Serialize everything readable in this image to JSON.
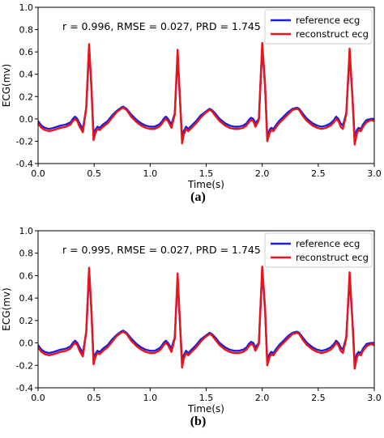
{
  "chart_data": [
    {
      "type": "line",
      "panel_label": "(a)",
      "annotation": "r = 0.996, RMSE = 0.027, PRD = 1.745",
      "xlabel": "Time(s)",
      "ylabel": "ECG(mv)",
      "xlim": [
        0.0,
        3.0
      ],
      "ylim": [
        -0.4,
        1.0
      ],
      "xticks": [
        "0.0",
        "0.5",
        "1.0",
        "1.5",
        "2.0",
        "2.5",
        "3.0"
      ],
      "yticks": [
        "-0.4",
        "-0.2",
        "0.0",
        "0.2",
        "0.4",
        "0.6",
        "0.8",
        "1.0"
      ],
      "grid": false,
      "legend_position": "top-right",
      "series": [
        {
          "name": "reference ecg",
          "color": "#1f1fd6",
          "x": [
            0.0,
            0.03,
            0.06,
            0.1,
            0.14,
            0.2,
            0.25,
            0.29,
            0.31,
            0.33,
            0.35,
            0.37,
            0.4,
            0.43,
            0.455,
            0.475,
            0.495,
            0.51,
            0.53,
            0.55,
            0.58,
            0.62,
            0.66,
            0.7,
            0.74,
            0.76,
            0.79,
            0.83,
            0.88,
            0.92,
            0.96,
            1.0,
            1.04,
            1.08,
            1.1,
            1.12,
            1.14,
            1.16,
            1.19,
            1.22,
            1.245,
            1.265,
            1.285,
            1.3,
            1.32,
            1.34,
            1.37,
            1.41,
            1.45,
            1.49,
            1.53,
            1.55,
            1.58,
            1.62,
            1.67,
            1.71,
            1.75,
            1.79,
            1.83,
            1.86,
            1.88,
            1.9,
            1.92,
            1.94,
            1.97,
            2.0,
            2.025,
            2.045,
            2.065,
            2.08,
            2.1,
            2.12,
            2.15,
            2.19,
            2.23,
            2.27,
            2.31,
            2.33,
            2.36,
            2.4,
            2.45,
            2.49,
            2.53,
            2.57,
            2.61,
            2.64,
            2.66,
            2.68,
            2.7,
            2.72,
            2.75,
            2.78,
            2.805,
            2.825,
            2.845,
            2.86,
            2.88,
            2.9,
            2.93,
            2.97,
            3.0
          ],
          "y": [
            -0.02,
            -0.06,
            -0.08,
            -0.09,
            -0.08,
            -0.06,
            -0.05,
            -0.03,
            0.0,
            0.02,
            0.0,
            -0.04,
            -0.09,
            0.1,
            0.63,
            0.3,
            -0.15,
            -0.1,
            -0.07,
            -0.08,
            -0.05,
            -0.02,
            0.03,
            0.07,
            0.1,
            0.11,
            0.09,
            0.04,
            -0.01,
            -0.04,
            -0.06,
            -0.07,
            -0.07,
            -0.05,
            -0.03,
            0.0,
            0.02,
            0.0,
            -0.05,
            0.05,
            0.57,
            0.2,
            -0.17,
            -0.11,
            -0.07,
            -0.09,
            -0.06,
            -0.02,
            0.03,
            0.06,
            0.09,
            0.08,
            0.05,
            0.0,
            -0.04,
            -0.06,
            -0.07,
            -0.07,
            -0.06,
            -0.04,
            -0.01,
            0.01,
            0.0,
            -0.04,
            0.0,
            0.64,
            0.3,
            -0.16,
            -0.1,
            -0.08,
            -0.09,
            -0.06,
            -0.02,
            0.02,
            0.06,
            0.09,
            0.1,
            0.09,
            0.05,
            0.0,
            -0.04,
            -0.06,
            -0.07,
            -0.06,
            -0.04,
            -0.01,
            0.02,
            0.0,
            -0.04,
            -0.06,
            0.05,
            0.58,
            0.2,
            -0.17,
            -0.1,
            -0.08,
            -0.09,
            -0.05,
            -0.01,
            0.0,
            0.0
          ]
        },
        {
          "name": "reconstruct ecg",
          "color": "#e8161c",
          "x": [
            0.0,
            0.03,
            0.06,
            0.1,
            0.14,
            0.2,
            0.25,
            0.29,
            0.31,
            0.33,
            0.35,
            0.37,
            0.4,
            0.43,
            0.455,
            0.475,
            0.495,
            0.51,
            0.53,
            0.55,
            0.58,
            0.62,
            0.66,
            0.7,
            0.74,
            0.76,
            0.79,
            0.83,
            0.88,
            0.92,
            0.96,
            1.0,
            1.04,
            1.08,
            1.1,
            1.12,
            1.14,
            1.16,
            1.19,
            1.22,
            1.245,
            1.265,
            1.285,
            1.3,
            1.32,
            1.34,
            1.37,
            1.41,
            1.45,
            1.49,
            1.53,
            1.55,
            1.58,
            1.62,
            1.67,
            1.71,
            1.75,
            1.79,
            1.83,
            1.86,
            1.88,
            1.9,
            1.92,
            1.94,
            1.97,
            2.0,
            2.025,
            2.045,
            2.065,
            2.08,
            2.1,
            2.12,
            2.15,
            2.19,
            2.23,
            2.27,
            2.31,
            2.33,
            2.36,
            2.4,
            2.45,
            2.49,
            2.53,
            2.57,
            2.61,
            2.64,
            2.66,
            2.68,
            2.7,
            2.72,
            2.75,
            2.78,
            2.805,
            2.825,
            2.845,
            2.86,
            2.88,
            2.9,
            2.93,
            2.97,
            3.0
          ],
          "y": [
            -0.04,
            -0.08,
            -0.1,
            -0.11,
            -0.1,
            -0.08,
            -0.07,
            -0.05,
            -0.02,
            0.0,
            -0.02,
            -0.07,
            -0.12,
            0.1,
            0.67,
            0.32,
            -0.19,
            -0.13,
            -0.09,
            -0.1,
            -0.07,
            -0.04,
            0.01,
            0.06,
            0.09,
            0.1,
            0.08,
            0.02,
            -0.03,
            -0.06,
            -0.08,
            -0.09,
            -0.09,
            -0.07,
            -0.05,
            -0.02,
            0.0,
            -0.02,
            -0.08,
            0.04,
            0.62,
            0.2,
            -0.22,
            -0.14,
            -0.09,
            -0.11,
            -0.08,
            -0.04,
            0.01,
            0.05,
            0.08,
            0.07,
            0.03,
            -0.02,
            -0.06,
            -0.08,
            -0.09,
            -0.09,
            -0.08,
            -0.06,
            -0.03,
            -0.01,
            -0.02,
            -0.07,
            -0.01,
            0.68,
            0.32,
            -0.2,
            -0.13,
            -0.1,
            -0.11,
            -0.08,
            -0.04,
            0.0,
            0.04,
            0.08,
            0.09,
            0.08,
            0.03,
            -0.02,
            -0.06,
            -0.08,
            -0.09,
            -0.08,
            -0.06,
            -0.03,
            0.0,
            -0.02,
            -0.07,
            -0.09,
            0.04,
            0.63,
            0.2,
            -0.23,
            -0.13,
            -0.1,
            -0.11,
            -0.07,
            -0.03,
            -0.01,
            -0.02
          ]
        }
      ]
    },
    {
      "type": "line",
      "panel_label": "(b)",
      "annotation": "r = 0.995, RMSE = 0.027, PRD = 1.745",
      "xlabel": "Time(s)",
      "ylabel": "ECG(mv)",
      "xlim": [
        0.0,
        3.0
      ],
      "ylim": [
        -0.4,
        1.0
      ],
      "xticks": [
        "0.0",
        "0.5",
        "1.0",
        "1.5",
        "2.0",
        "2.5",
        "3.0"
      ],
      "yticks": [
        "-0.4",
        "-0.2",
        "0.0",
        "0.2",
        "0.4",
        "0.6",
        "0.8",
        "1.0"
      ],
      "grid": false,
      "legend_position": "top-right",
      "series": [
        {
          "name": "reference ecg",
          "color": "#1f1fd6",
          "x": [
            0.0,
            0.03,
            0.06,
            0.1,
            0.14,
            0.2,
            0.25,
            0.29,
            0.31,
            0.33,
            0.35,
            0.37,
            0.4,
            0.43,
            0.455,
            0.475,
            0.495,
            0.51,
            0.53,
            0.55,
            0.58,
            0.62,
            0.66,
            0.7,
            0.74,
            0.76,
            0.79,
            0.83,
            0.88,
            0.92,
            0.96,
            1.0,
            1.04,
            1.08,
            1.1,
            1.12,
            1.14,
            1.16,
            1.19,
            1.22,
            1.245,
            1.265,
            1.285,
            1.3,
            1.32,
            1.34,
            1.37,
            1.41,
            1.45,
            1.49,
            1.53,
            1.55,
            1.58,
            1.62,
            1.67,
            1.71,
            1.75,
            1.79,
            1.83,
            1.86,
            1.88,
            1.9,
            1.92,
            1.94,
            1.97,
            2.0,
            2.025,
            2.045,
            2.065,
            2.08,
            2.1,
            2.12,
            2.15,
            2.19,
            2.23,
            2.27,
            2.31,
            2.33,
            2.36,
            2.4,
            2.45,
            2.49,
            2.53,
            2.57,
            2.61,
            2.64,
            2.66,
            2.68,
            2.7,
            2.72,
            2.75,
            2.78,
            2.805,
            2.825,
            2.845,
            2.86,
            2.88,
            2.9,
            2.93,
            2.97,
            3.0
          ],
          "y": [
            -0.02,
            -0.06,
            -0.08,
            -0.09,
            -0.08,
            -0.06,
            -0.05,
            -0.03,
            0.0,
            0.02,
            0.0,
            -0.04,
            -0.09,
            0.1,
            0.63,
            0.3,
            -0.15,
            -0.1,
            -0.07,
            -0.08,
            -0.05,
            -0.02,
            0.03,
            0.07,
            0.1,
            0.11,
            0.09,
            0.04,
            -0.01,
            -0.04,
            -0.06,
            -0.07,
            -0.07,
            -0.05,
            -0.03,
            0.0,
            0.02,
            0.0,
            -0.05,
            0.05,
            0.57,
            0.2,
            -0.17,
            -0.11,
            -0.07,
            -0.09,
            -0.06,
            -0.02,
            0.03,
            0.06,
            0.09,
            0.08,
            0.05,
            0.0,
            -0.04,
            -0.06,
            -0.07,
            -0.07,
            -0.06,
            -0.04,
            -0.01,
            0.01,
            0.0,
            -0.04,
            0.0,
            0.64,
            0.3,
            -0.16,
            -0.1,
            -0.08,
            -0.09,
            -0.06,
            -0.02,
            0.02,
            0.06,
            0.09,
            0.1,
            0.09,
            0.05,
            0.0,
            -0.04,
            -0.06,
            -0.07,
            -0.06,
            -0.04,
            -0.01,
            0.02,
            0.0,
            -0.04,
            -0.06,
            0.05,
            0.58,
            0.2,
            -0.17,
            -0.1,
            -0.08,
            -0.09,
            -0.05,
            -0.01,
            0.0,
            0.0
          ]
        },
        {
          "name": "reconstruct ecg",
          "color": "#e8161c",
          "x": [
            0.0,
            0.03,
            0.06,
            0.1,
            0.14,
            0.2,
            0.25,
            0.29,
            0.31,
            0.33,
            0.35,
            0.37,
            0.4,
            0.43,
            0.455,
            0.475,
            0.495,
            0.51,
            0.53,
            0.55,
            0.58,
            0.62,
            0.66,
            0.7,
            0.74,
            0.76,
            0.79,
            0.83,
            0.88,
            0.92,
            0.96,
            1.0,
            1.04,
            1.08,
            1.1,
            1.12,
            1.14,
            1.16,
            1.19,
            1.22,
            1.245,
            1.265,
            1.285,
            1.3,
            1.32,
            1.34,
            1.37,
            1.41,
            1.45,
            1.49,
            1.53,
            1.55,
            1.58,
            1.62,
            1.67,
            1.71,
            1.75,
            1.79,
            1.83,
            1.86,
            1.88,
            1.9,
            1.92,
            1.94,
            1.97,
            2.0,
            2.025,
            2.045,
            2.065,
            2.08,
            2.1,
            2.12,
            2.15,
            2.19,
            2.23,
            2.27,
            2.31,
            2.33,
            2.36,
            2.4,
            2.45,
            2.49,
            2.53,
            2.57,
            2.61,
            2.64,
            2.66,
            2.68,
            2.7,
            2.72,
            2.75,
            2.78,
            2.805,
            2.825,
            2.845,
            2.86,
            2.88,
            2.9,
            2.93,
            2.97,
            3.0
          ],
          "y": [
            -0.04,
            -0.08,
            -0.1,
            -0.11,
            -0.1,
            -0.08,
            -0.07,
            -0.05,
            -0.02,
            0.0,
            -0.02,
            -0.07,
            -0.12,
            0.1,
            0.67,
            0.32,
            -0.19,
            -0.13,
            -0.09,
            -0.1,
            -0.07,
            -0.04,
            0.01,
            0.06,
            0.09,
            0.1,
            0.08,
            0.02,
            -0.03,
            -0.06,
            -0.08,
            -0.09,
            -0.09,
            -0.07,
            -0.05,
            -0.02,
            0.0,
            -0.02,
            -0.08,
            0.04,
            0.62,
            0.2,
            -0.22,
            -0.14,
            -0.09,
            -0.11,
            -0.08,
            -0.04,
            0.01,
            0.05,
            0.08,
            0.07,
            0.03,
            -0.02,
            -0.06,
            -0.08,
            -0.09,
            -0.09,
            -0.08,
            -0.06,
            -0.03,
            -0.01,
            -0.02,
            -0.07,
            -0.01,
            0.68,
            0.32,
            -0.2,
            -0.13,
            -0.1,
            -0.11,
            -0.08,
            -0.04,
            0.0,
            0.04,
            0.08,
            0.09,
            0.08,
            0.03,
            -0.02,
            -0.06,
            -0.08,
            -0.09,
            -0.08,
            -0.06,
            -0.03,
            0.0,
            -0.02,
            -0.07,
            -0.09,
            0.04,
            0.63,
            0.2,
            -0.23,
            -0.13,
            -0.1,
            -0.11,
            -0.07,
            -0.03,
            -0.01,
            -0.02
          ]
        }
      ]
    }
  ]
}
